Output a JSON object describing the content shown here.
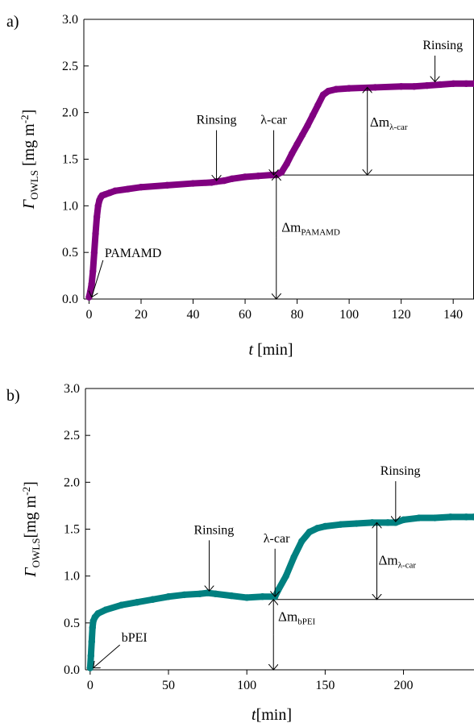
{
  "chart_data": [
    {
      "panel_label": "a)",
      "type": "scatter",
      "xlabel_italic": "t",
      "xlabel_rest": " [min]",
      "ylabel_symbol": "Γ",
      "ylabel_sub": "OWLS",
      "ylabel_unit": " [mg m",
      "ylabel_sup": "-2",
      "ylabel_close": "]",
      "xlim": [
        -2,
        148
      ],
      "ylim": [
        0,
        3.0
      ],
      "xticks": [
        0,
        20,
        40,
        60,
        80,
        100,
        120,
        140
      ],
      "yticks": [
        "0.0",
        "0.5",
        "1.0",
        "1.5",
        "2.0",
        "2.5",
        "3.0"
      ],
      "color": "#800080",
      "series": [
        {
          "x": [
            0,
            0.5,
            1,
            1.5,
            2,
            2.5,
            3,
            3.5,
            4,
            4.5,
            5,
            6,
            8,
            10,
            15,
            20,
            30,
            40,
            47,
            49,
            52,
            55,
            60,
            65,
            70,
            72,
            74,
            76,
            78,
            80,
            82,
            84,
            86,
            88,
            90,
            92,
            95,
            100,
            110,
            120,
            125,
            130,
            135,
            140,
            145,
            148
          ],
          "y": [
            0.02,
            0.08,
            0.16,
            0.3,
            0.5,
            0.7,
            0.88,
            1.0,
            1.06,
            1.09,
            1.11,
            1.12,
            1.14,
            1.16,
            1.18,
            1.2,
            1.22,
            1.24,
            1.25,
            1.26,
            1.27,
            1.29,
            1.31,
            1.32,
            1.33,
            1.33,
            1.36,
            1.45,
            1.56,
            1.66,
            1.76,
            1.86,
            1.97,
            2.08,
            2.19,
            2.23,
            2.25,
            2.26,
            2.27,
            2.28,
            2.28,
            2.29,
            2.3,
            2.31,
            2.31,
            2.31
          ]
        }
      ],
      "reference_line_y": 1.33,
      "annotations": [
        {
          "text": "PAMAMD",
          "arrow_to": [
            1,
            0.02
          ],
          "label_at": [
            6,
            0.45
          ]
        },
        {
          "text": "Rinsing",
          "arrow_to": [
            49,
            1.27
          ],
          "label_at": [
            49,
            1.88
          ]
        },
        {
          "text": "λ-car",
          "arrow_to": [
            71,
            1.33
          ],
          "label_at": [
            71,
            1.88
          ]
        },
        {
          "text": "Rinsing",
          "arrow_to": [
            133,
            2.33
          ],
          "label_at": [
            136,
            2.68
          ]
        }
      ],
      "deltas": [
        {
          "label_main": "Δm",
          "label_sub": "PAMAMD",
          "x": 72,
          "y_from": 0,
          "y_to": 1.33,
          "label_at": [
            74,
            0.72
          ]
        },
        {
          "label_main": "Δm",
          "label_sub": "λ-car",
          "x": 107,
          "y_from": 1.33,
          "y_to": 2.27,
          "label_at": [
            108,
            1.85
          ]
        }
      ]
    },
    {
      "panel_label": "b)",
      "type": "scatter",
      "xlabel_italic": "t",
      "xlabel_rest": "[min]",
      "ylabel_symbol": "Γ",
      "ylabel_sub": "OWLS",
      "ylabel_unit": "[mg m",
      "ylabel_sup": "-2",
      "ylabel_close": "]",
      "xlim": [
        -3,
        245
      ],
      "ylim": [
        0,
        3.0
      ],
      "xticks": [
        0,
        50,
        100,
        150,
        200
      ],
      "yticks": [
        "0.0",
        "0.5",
        "1.0",
        "1.5",
        "2.0",
        "2.5",
        "3.0"
      ],
      "color": "#008080",
      "series": [
        {
          "x": [
            0,
            0.5,
            1,
            1.5,
            2,
            3,
            5,
            10,
            20,
            30,
            40,
            50,
            60,
            70,
            75,
            80,
            90,
            100,
            110,
            118,
            120,
            125,
            130,
            135,
            140,
            145,
            150,
            160,
            170,
            180,
            190,
            195,
            200,
            210,
            220,
            230,
            240,
            245
          ],
          "y": [
            0.02,
            0.15,
            0.3,
            0.45,
            0.52,
            0.56,
            0.6,
            0.64,
            0.69,
            0.72,
            0.75,
            0.78,
            0.8,
            0.81,
            0.82,
            0.81,
            0.79,
            0.77,
            0.78,
            0.78,
            0.85,
            1.0,
            1.2,
            1.37,
            1.47,
            1.51,
            1.53,
            1.55,
            1.56,
            1.57,
            1.57,
            1.57,
            1.6,
            1.62,
            1.62,
            1.63,
            1.63,
            1.63
          ]
        }
      ],
      "reference_line_y": 0.75,
      "annotations": [
        {
          "text": "bPEI",
          "arrow_to": [
            2,
            0.02
          ],
          "label_at": [
            20,
            0.3
          ]
        },
        {
          "text": "Rinsing",
          "arrow_to": [
            76,
            0.84
          ],
          "label_at": [
            79,
            1.45
          ]
        },
        {
          "text": "λ-car",
          "arrow_to": [
            118,
            0.78
          ],
          "label_at": [
            119,
            1.36
          ]
        },
        {
          "text": "Rinsing",
          "arrow_to": [
            195,
            1.58
          ],
          "label_at": [
            198,
            2.08
          ]
        }
      ],
      "deltas": [
        {
          "label_main": "Δm",
          "label_sub": "bPEI",
          "x": 117,
          "y_from": 0,
          "y_to": 0.75,
          "label_at": [
            120,
            0.52
          ]
        },
        {
          "label_main": "Δm",
          "label_sub": "λ-car",
          "x": 183,
          "y_from": 0.75,
          "y_to": 1.57,
          "label_at": [
            184,
            1.12
          ]
        }
      ]
    }
  ]
}
